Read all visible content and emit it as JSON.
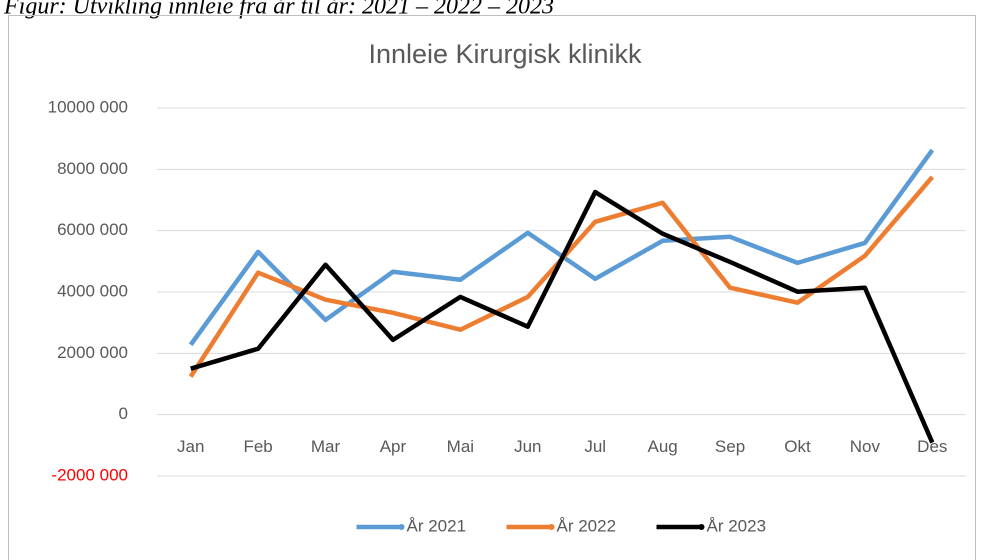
{
  "caption": "Figur: Utvikling innleie fra år til år: 2021 – 2022 – 2023",
  "chart_data": {
    "type": "line",
    "title": "Innleie Kirurgisk klinikk",
    "categories": [
      "Jan",
      "Feb",
      "Mar",
      "Apr",
      "Mai",
      "Jun",
      "Jul",
      "Aug",
      "Sep",
      "Okt",
      "Nov",
      "Des"
    ],
    "series": [
      {
        "name": "År 2021",
        "color": "#5b9bd5",
        "values": [
          2280000,
          5310000,
          3090000,
          4660000,
          4400000,
          5930000,
          4430000,
          5670000,
          5800000,
          4950000,
          5600000,
          8630000
        ]
      },
      {
        "name": "År 2022",
        "color": "#ed7d31",
        "values": [
          1240000,
          4630000,
          3750000,
          3320000,
          2770000,
          3840000,
          6290000,
          6910000,
          4140000,
          3650000,
          5180000,
          7750000
        ]
      },
      {
        "name": "År 2023",
        "color": "#000000",
        "values": [
          1500000,
          2150000,
          4890000,
          2440000,
          3840000,
          2870000,
          7260000,
          5900000,
          4980000,
          4010000,
          4140000,
          -910000
        ]
      }
    ],
    "ylim": [
      -2000000,
      10000000
    ],
    "yticks": [
      {
        "value": -2000000,
        "label": "-2000 000"
      },
      0,
      {
        "value": 2000000,
        "label": "2000 000"
      },
      {
        "value": 4000000,
        "label": "4000 000"
      },
      {
        "value": 6000000,
        "label": "6000 000"
      },
      {
        "value": 8000000,
        "label": "8000 000"
      },
      {
        "value": 10000000,
        "label": "10000 000"
      }
    ],
    "negative_tick_color": "#ff0000",
    "grid": true,
    "legend": "bottom"
  }
}
